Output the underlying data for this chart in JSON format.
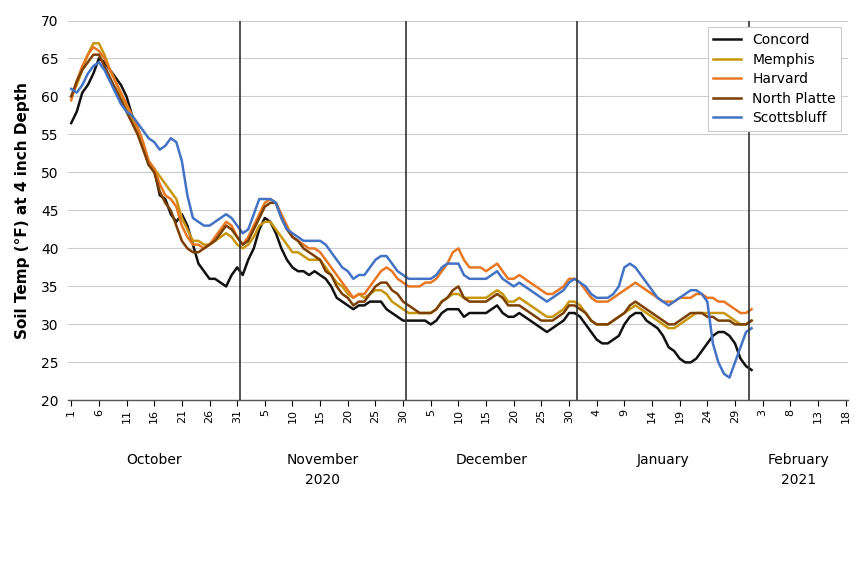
{
  "ylabel": "Soil Temp (°F) at 4 inch Depth",
  "ylim": [
    20,
    70
  ],
  "yticks": [
    20,
    25,
    30,
    35,
    40,
    45,
    50,
    55,
    60,
    65,
    70
  ],
  "legend_labels": [
    "Concord",
    "Memphis",
    "Harvard",
    "North Platte",
    "Scottsbluff"
  ],
  "line_colors": [
    "#111111",
    "#C8960C",
    "#E87722",
    "#7B3F00",
    "#4472C4"
  ],
  "line_widths": [
    1.8,
    1.8,
    1.8,
    1.8,
    1.8
  ],
  "month_labels": [
    "October",
    "November",
    "December",
    "January",
    "February"
  ],
  "year_labels": [
    "2020",
    "2021"
  ],
  "month_tick_labels": [
    "1",
    "6",
    "11",
    "16",
    "21",
    "26",
    "31",
    "5",
    "10",
    "15",
    "20",
    "25",
    "30",
    "5",
    "10",
    "15",
    "20",
    "25",
    "30",
    "4",
    "9",
    "14",
    "19",
    "24",
    "29",
    "3",
    "8",
    "13",
    "18"
  ],
  "month_sizes": [
    31,
    30,
    31,
    31,
    18
  ],
  "concord": [
    56.5,
    58.0,
    60.5,
    61.5,
    63.0,
    65.0,
    64.5,
    63.5,
    62.5,
    61.5,
    60.0,
    57.5,
    55.5,
    53.5,
    51.0,
    50.5,
    47.0,
    46.5,
    44.5,
    43.5,
    44.5,
    43.0,
    40.5,
    38.0,
    37.0,
    36.0,
    36.0,
    35.5,
    35.0,
    36.5,
    37.5,
    36.5,
    38.5,
    40.0,
    42.5,
    44.0,
    43.5,
    42.0,
    40.0,
    38.5,
    37.5,
    37.0,
    37.0,
    36.5,
    37.0,
    36.5,
    36.0,
    35.0,
    33.5,
    33.0,
    32.5,
    32.0,
    32.5,
    32.5,
    33.0,
    33.0,
    33.0,
    32.0,
    31.5,
    31.0,
    30.5,
    30.5,
    30.5,
    30.5,
    30.5,
    30.0,
    30.5,
    31.5,
    32.0,
    32.0,
    32.0,
    31.0,
    31.5,
    31.5,
    31.5,
    31.5,
    32.0,
    32.5,
    31.5,
    31.0,
    31.0,
    31.5,
    31.0,
    30.5,
    30.0,
    29.5,
    29.0,
    29.5,
    30.0,
    30.5,
    31.5,
    31.5,
    31.0,
    30.0,
    29.0,
    28.0,
    27.5,
    27.5,
    28.0,
    28.5,
    30.0,
    31.0,
    31.5,
    31.5,
    30.5,
    30.0,
    29.5,
    28.5,
    27.0,
    26.5,
    25.5,
    25.0,
    25.0,
    25.5,
    26.5,
    27.5,
    28.5,
    29.0,
    29.0,
    28.5,
    27.5,
    25.5,
    24.5,
    24.0
  ],
  "memphis": [
    60.0,
    61.5,
    63.5,
    65.5,
    67.0,
    67.0,
    65.5,
    63.5,
    62.0,
    60.0,
    58.5,
    57.0,
    55.5,
    53.5,
    51.5,
    50.5,
    49.5,
    48.5,
    47.5,
    46.5,
    44.0,
    42.5,
    41.0,
    41.0,
    40.5,
    40.5,
    41.0,
    41.5,
    42.0,
    41.5,
    40.5,
    40.0,
    40.5,
    41.5,
    43.0,
    43.5,
    43.5,
    42.5,
    41.5,
    40.5,
    39.5,
    39.5,
    39.0,
    38.5,
    38.5,
    38.5,
    37.5,
    36.5,
    35.5,
    35.0,
    34.0,
    33.5,
    34.0,
    33.5,
    34.0,
    34.5,
    34.5,
    34.0,
    33.0,
    32.5,
    32.0,
    31.5,
    31.5,
    31.5,
    31.5,
    31.5,
    32.0,
    33.0,
    33.5,
    34.0,
    34.0,
    33.5,
    33.5,
    33.5,
    33.5,
    33.5,
    34.0,
    34.5,
    34.0,
    33.0,
    33.0,
    33.5,
    33.0,
    32.5,
    32.0,
    31.5,
    31.0,
    31.0,
    31.5,
    32.0,
    33.0,
    33.0,
    32.5,
    31.5,
    30.5,
    30.0,
    30.0,
    30.0,
    30.5,
    31.0,
    31.5,
    32.0,
    32.5,
    32.0,
    31.5,
    31.0,
    30.5,
    30.0,
    29.5,
    29.5,
    30.0,
    30.5,
    31.0,
    31.5,
    31.5,
    31.5,
    31.5,
    31.5,
    31.5,
    31.0,
    30.5,
    30.0,
    30.0,
    30.5
  ],
  "harvard": [
    59.5,
    62.0,
    64.0,
    65.5,
    66.5,
    66.0,
    65.0,
    63.5,
    62.0,
    60.5,
    59.0,
    57.5,
    56.0,
    54.0,
    51.5,
    50.5,
    48.5,
    47.0,
    46.5,
    45.5,
    43.0,
    41.5,
    40.5,
    40.5,
    40.0,
    40.5,
    41.5,
    42.5,
    43.5,
    43.0,
    41.5,
    40.5,
    41.5,
    43.0,
    44.5,
    46.0,
    46.5,
    46.0,
    44.5,
    43.0,
    41.5,
    41.0,
    40.5,
    40.0,
    40.0,
    39.5,
    38.5,
    37.5,
    36.5,
    35.5,
    34.5,
    33.5,
    34.0,
    34.0,
    35.0,
    36.0,
    37.0,
    37.5,
    37.0,
    36.0,
    35.5,
    35.0,
    35.0,
    35.0,
    35.5,
    35.5,
    36.0,
    37.0,
    38.0,
    39.5,
    40.0,
    38.5,
    37.5,
    37.5,
    37.5,
    37.0,
    37.5,
    38.0,
    37.0,
    36.0,
    36.0,
    36.5,
    36.0,
    35.5,
    35.0,
    34.5,
    34.0,
    34.0,
    34.5,
    35.0,
    36.0,
    36.0,
    35.5,
    34.5,
    33.5,
    33.0,
    33.0,
    33.0,
    33.5,
    34.0,
    34.5,
    35.0,
    35.5,
    35.0,
    34.5,
    34.0,
    33.5,
    33.0,
    33.0,
    33.0,
    33.5,
    33.5,
    33.5,
    34.0,
    34.0,
    33.5,
    33.5,
    33.0,
    33.0,
    32.5,
    32.0,
    31.5,
    31.5,
    32.0
  ],
  "north_platte": [
    60.0,
    62.0,
    63.5,
    64.5,
    65.5,
    65.5,
    64.0,
    62.5,
    61.0,
    59.5,
    58.0,
    56.5,
    55.0,
    53.0,
    51.0,
    50.0,
    47.5,
    46.0,
    45.0,
    43.0,
    41.0,
    40.0,
    39.5,
    39.5,
    40.0,
    40.5,
    41.0,
    42.0,
    43.0,
    42.5,
    41.5,
    40.5,
    41.0,
    42.5,
    44.0,
    45.5,
    46.0,
    46.0,
    44.0,
    42.5,
    41.5,
    41.0,
    40.0,
    39.5,
    39.0,
    38.5,
    37.0,
    36.5,
    35.0,
    34.0,
    33.5,
    32.5,
    33.0,
    33.0,
    34.0,
    35.0,
    35.5,
    35.5,
    34.5,
    34.0,
    33.0,
    32.5,
    32.0,
    31.5,
    31.5,
    31.5,
    32.0,
    33.0,
    33.5,
    34.5,
    35.0,
    33.5,
    33.0,
    33.0,
    33.0,
    33.0,
    33.5,
    34.0,
    33.5,
    32.5,
    32.5,
    32.5,
    32.0,
    31.5,
    31.0,
    30.5,
    30.5,
    30.5,
    31.0,
    31.5,
    32.5,
    32.5,
    32.0,
    31.5,
    30.5,
    30.0,
    30.0,
    30.0,
    30.5,
    31.0,
    31.5,
    32.5,
    33.0,
    32.5,
    32.0,
    31.5,
    31.0,
    30.5,
    30.0,
    30.0,
    30.5,
    31.0,
    31.5,
    31.5,
    31.5,
    31.0,
    31.0,
    30.5,
    30.5,
    30.5,
    30.0,
    30.0,
    30.0,
    30.5
  ],
  "scottsbluff": [
    61.0,
    60.5,
    61.5,
    63.0,
    64.0,
    64.5,
    63.5,
    62.0,
    60.5,
    59.0,
    58.0,
    57.5,
    56.5,
    55.5,
    54.5,
    54.0,
    53.0,
    53.5,
    54.5,
    54.0,
    51.5,
    47.0,
    44.0,
    43.5,
    43.0,
    43.0,
    43.5,
    44.0,
    44.5,
    44.0,
    43.0,
    42.0,
    42.5,
    44.5,
    46.5,
    46.5,
    46.5,
    46.0,
    44.0,
    42.5,
    42.0,
    41.5,
    41.0,
    41.0,
    41.0,
    41.0,
    40.5,
    39.5,
    38.5,
    37.5,
    37.0,
    36.0,
    36.5,
    36.5,
    37.5,
    38.5,
    39.0,
    39.0,
    38.0,
    37.0,
    36.5,
    36.0,
    36.0,
    36.0,
    36.0,
    36.0,
    36.5,
    37.5,
    38.0,
    38.0,
    38.0,
    36.5,
    36.0,
    36.0,
    36.0,
    36.0,
    36.5,
    37.0,
    36.0,
    35.5,
    35.0,
    35.5,
    35.0,
    34.5,
    34.0,
    33.5,
    33.0,
    33.5,
    34.0,
    34.5,
    35.5,
    36.0,
    35.5,
    35.0,
    34.0,
    33.5,
    33.5,
    33.5,
    34.0,
    35.0,
    37.5,
    38.0,
    37.5,
    36.5,
    35.5,
    34.5,
    33.5,
    33.0,
    32.5,
    33.0,
    33.5,
    34.0,
    34.5,
    34.5,
    34.0,
    33.0,
    27.5,
    25.0,
    23.5,
    23.0,
    25.0,
    27.0,
    29.0,
    29.5
  ]
}
